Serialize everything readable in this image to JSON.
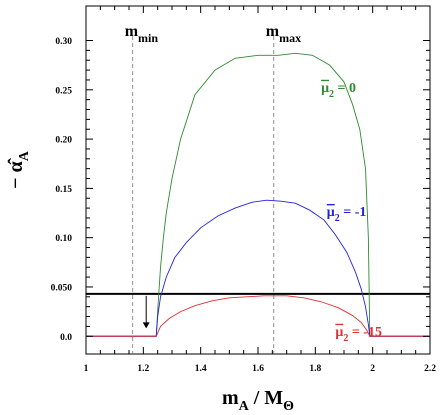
{
  "chart_data": {
    "type": "line",
    "xlabel": {
      "main": "m",
      "sub": "A",
      "sep": " / M",
      "sub2": "Θ"
    },
    "ylabel": {
      "prefix": "− ",
      "main": "α̂",
      "sub": "A"
    },
    "xlim": [
      1.0,
      2.2
    ],
    "ylim": [
      -0.018,
      0.335
    ],
    "xticks": [
      1,
      1.2,
      1.4,
      1.6,
      1.8,
      2,
      2.2
    ],
    "xtick_labels": [
      "1",
      "1.2",
      "1.4",
      "1.6",
      "1.8",
      "2",
      "2.2"
    ],
    "yticks": [
      0.0,
      0.05,
      0.1,
      0.15,
      0.2,
      0.25,
      0.3
    ],
    "ytick_labels": [
      "0.0",
      "0.050",
      "0.10",
      "0.15",
      "0.20",
      "0.25",
      "0.30"
    ],
    "grid": false,
    "hline": {
      "y": 0.043,
      "color": "#000000"
    },
    "vlines": [
      {
        "x": 1.163,
        "label_main": "m",
        "label_sub": "min"
      },
      {
        "x": 1.655,
        "label_main": "m",
        "label_sub": "max"
      }
    ],
    "arrow": {
      "x": 1.21,
      "y_from": 0.043,
      "y_to": 0.008
    },
    "series": [
      {
        "name_main": "μ",
        "name_sub": "2",
        "name_value": " = 0",
        "color": "#2e8b2e",
        "x": [
          1.0,
          1.245,
          1.252,
          1.26,
          1.27,
          1.28,
          1.3,
          1.33,
          1.38,
          1.45,
          1.52,
          1.6,
          1.67,
          1.73,
          1.79,
          1.85,
          1.9,
          1.93,
          1.955,
          1.975,
          1.985,
          1.99,
          2.2
        ],
        "y": [
          0.0,
          0.0,
          0.035,
          0.07,
          0.1,
          0.125,
          0.16,
          0.2,
          0.245,
          0.27,
          0.282,
          0.285,
          0.285,
          0.287,
          0.285,
          0.275,
          0.258,
          0.235,
          0.21,
          0.17,
          0.1,
          0.0,
          0.0
        ]
      },
      {
        "name_main": "μ",
        "name_sub": "2",
        "name_value": " = -1",
        "color": "#2323dd",
        "x": [
          1.0,
          1.245,
          1.25,
          1.26,
          1.28,
          1.31,
          1.35,
          1.4,
          1.46,
          1.52,
          1.58,
          1.63,
          1.68,
          1.73,
          1.78,
          1.83,
          1.87,
          1.91,
          1.94,
          1.96,
          1.975,
          1.985,
          1.99,
          2.2
        ],
        "y": [
          0.0,
          0.0,
          0.02,
          0.04,
          0.06,
          0.08,
          0.095,
          0.11,
          0.122,
          0.13,
          0.136,
          0.138,
          0.137,
          0.135,
          0.128,
          0.118,
          0.103,
          0.085,
          0.065,
          0.048,
          0.03,
          0.012,
          0.0,
          0.0
        ]
      },
      {
        "name_main": "μ",
        "name_sub": "2",
        "name_value": " = -15",
        "color": "#e03030",
        "x": [
          1.0,
          1.245,
          1.26,
          1.29,
          1.33,
          1.38,
          1.44,
          1.5,
          1.56,
          1.62,
          1.66,
          1.7,
          1.76,
          1.82,
          1.88,
          1.93,
          1.96,
          1.98,
          1.99,
          2.2
        ],
        "y": [
          0.0,
          0.0,
          0.01,
          0.018,
          0.025,
          0.031,
          0.036,
          0.039,
          0.04,
          0.041,
          0.041,
          0.041,
          0.039,
          0.035,
          0.029,
          0.021,
          0.014,
          0.006,
          0.0,
          0.0
        ]
      }
    ]
  }
}
